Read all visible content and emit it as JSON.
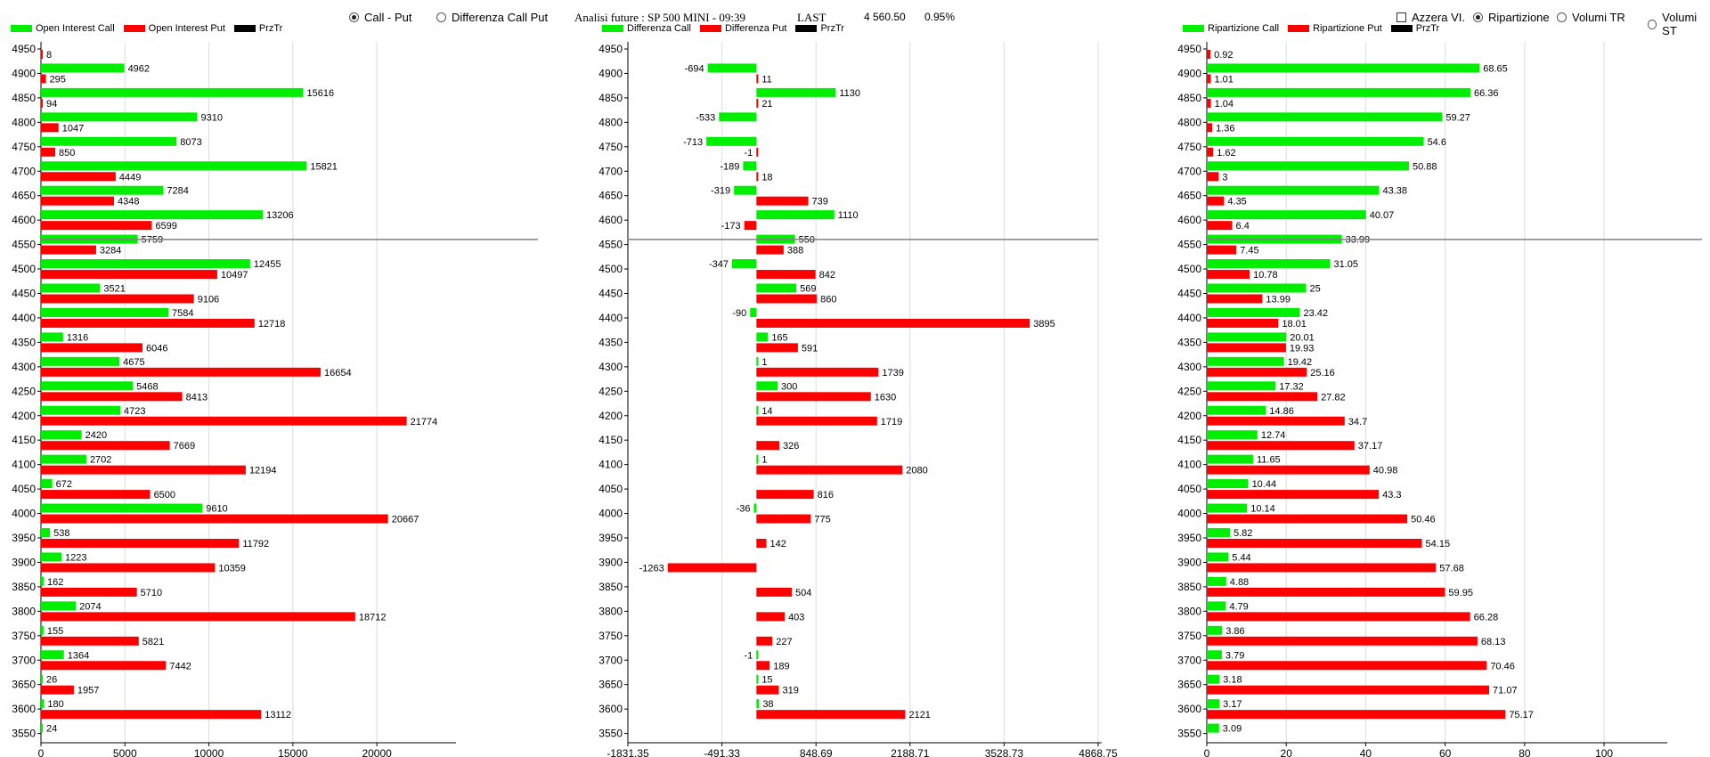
{
  "header": {
    "mode_call_put": "Call - Put",
    "mode_diff": "Differenza Call Put",
    "title": "Analisi future : SP 500 MINI - 09:39",
    "last_label": "LAST",
    "last_value": "4 560.50",
    "change_pct": "0.95%",
    "reset_label": "Azzera VI.",
    "opt_ripartizione": "Ripartizione",
    "opt_volumi_tr": "Volumi TR",
    "opt_volumi_st": "Volumi ST"
  },
  "colors": {
    "call": "#00ee00",
    "put": "#ff0000",
    "price": "#000000",
    "grid": "#dcdcdc",
    "price_line": "#808080"
  },
  "chart_data": [
    {
      "type": "bar",
      "legend": [
        "Open Interest Call",
        "Open Interest Put",
        "PrzTr"
      ],
      "categories": [
        "4950",
        "4900",
        "4850",
        "4800",
        "4750",
        "4700",
        "4650",
        "4600",
        "4550",
        "4500",
        "4450",
        "4400",
        "4350",
        "4300",
        "4250",
        "4200",
        "4150",
        "4100",
        "4050",
        "4000",
        "3950",
        "3900",
        "3850",
        "3800",
        "3750",
        "3700",
        "3650",
        "3600",
        "3550"
      ],
      "series": [
        {
          "name": "Open Interest Call",
          "values": [
            null,
            4962,
            15616,
            9310,
            8073,
            15821,
            7284,
            13206,
            5759,
            12455,
            3521,
            7584,
            1316,
            4675,
            5468,
            4723,
            2420,
            2702,
            672,
            9610,
            538,
            1223,
            162,
            2074,
            155,
            1364,
            26,
            180,
            24
          ]
        },
        {
          "name": "Open Interest Put",
          "values": [
            8,
            295,
            94,
            1047,
            850,
            4449,
            4348,
            6599,
            3284,
            10497,
            9106,
            12718,
            6046,
            16654,
            8413,
            21774,
            7669,
            12194,
            6500,
            20667,
            11792,
            10359,
            5710,
            18712,
            5821,
            7442,
            1957,
            13112,
            null
          ]
        }
      ],
      "price_level": 4560.5,
      "xticks": [
        "0",
        "5000",
        "10000",
        "15000",
        "20000"
      ],
      "xlim": [
        0,
        24500
      ]
    },
    {
      "type": "bar",
      "legend": [
        "Differenza Call",
        "Differenza Put",
        "PrzTr"
      ],
      "categories": [
        "4950",
        "4900",
        "4850",
        "4800",
        "4750",
        "4700",
        "4650",
        "4600",
        "4550",
        "4500",
        "4450",
        "4400",
        "4350",
        "4300",
        "4250",
        "4200",
        "4150",
        "4100",
        "4050",
        "4000",
        "3950",
        "3900",
        "3850",
        "3800",
        "3750",
        "3700",
        "3650",
        "3600",
        "3550"
      ],
      "series": [
        {
          "name": "Differenza Call",
          "values": [
            null,
            -694,
            1130,
            -533,
            -713,
            -189,
            -319,
            1110,
            550,
            -347,
            569,
            -90,
            165,
            1,
            300,
            14,
            null,
            1,
            null,
            -36,
            null,
            null,
            null,
            null,
            null,
            -1,
            15,
            38,
            null
          ]
        },
        {
          "name": "Differenza Put",
          "values": [
            null,
            11,
            21,
            null,
            -1,
            18,
            739,
            -173,
            388,
            842,
            860,
            3895,
            591,
            1739,
            1630,
            1719,
            326,
            2080,
            816,
            775,
            142,
            -1263,
            504,
            403,
            227,
            189,
            319,
            2121,
            null
          ]
        }
      ],
      "price_level": 4560.5,
      "xticks": [
        "-1831.35",
        "-491.33",
        "848.69",
        "2188.71",
        "3528.73",
        "4868.75"
      ],
      "xlim": [
        -1831.35,
        4868.75
      ]
    },
    {
      "type": "bar",
      "legend": [
        "Ripartizione Call",
        "Ripartizione Put",
        "PrzTr"
      ],
      "categories": [
        "4950",
        "4900",
        "4850",
        "4800",
        "4750",
        "4700",
        "4650",
        "4600",
        "4550",
        "4500",
        "4450",
        "4400",
        "4350",
        "4300",
        "4250",
        "4200",
        "4150",
        "4100",
        "4050",
        "4000",
        "3950",
        "3900",
        "3850",
        "3800",
        "3750",
        "3700",
        "3650",
        "3600",
        "3550"
      ],
      "series": [
        {
          "name": "Ripartizione Call",
          "values": [
            null,
            68.65,
            66.36,
            59.27,
            54.6,
            50.88,
            43.38,
            40.07,
            33.99,
            31.05,
            25,
            23.42,
            20.01,
            19.42,
            17.32,
            14.86,
            12.74,
            11.65,
            10.44,
            10.14,
            5.82,
            5.44,
            4.88,
            4.79,
            3.86,
            3.79,
            3.18,
            3.17,
            3.09
          ]
        },
        {
          "name": "Ripartizione Put",
          "values": [
            0.92,
            1.01,
            1.04,
            1.36,
            1.62,
            3,
            4.35,
            6.4,
            7.45,
            10.78,
            13.99,
            18.01,
            19.93,
            25.16,
            27.82,
            34.7,
            37.17,
            40.98,
            43.3,
            50.46,
            54.15,
            57.68,
            59.95,
            66.28,
            68.13,
            70.46,
            71.07,
            75.17,
            null
          ]
        }
      ],
      "price_level": 4560.5,
      "xticks": [
        "0",
        "20",
        "40",
        "60",
        "80",
        "100"
      ],
      "xlim": [
        0,
        115
      ]
    }
  ]
}
